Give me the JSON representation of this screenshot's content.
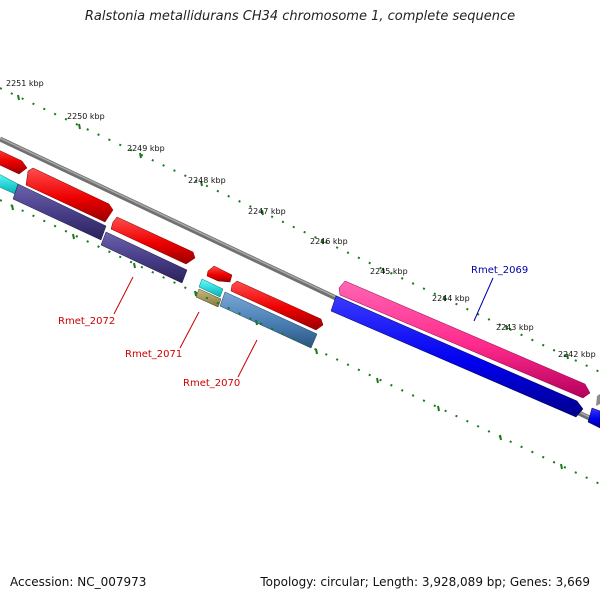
{
  "title": "Ralstonia metallidurans CH34 chromosome 1, complete sequence",
  "accession_text": "Accession: NC_007973",
  "summary_text": "Topology: circular; Length: 3,928,089 bp; Genes: 3,669",
  "ticks": [
    "2251 kbp",
    "2250 kbp",
    "2249 kbp",
    "2248 kbp",
    "2247 kbp",
    "2246 kbp",
    "2245 kbp",
    "2244 kbp",
    "2243 kbp",
    "2242 kbp"
  ],
  "gene_labels": [
    {
      "name": "Rmet_2072",
      "color": "#cc0000"
    },
    {
      "name": "Rmet_2071",
      "color": "#cc0000"
    },
    {
      "name": "Rmet_2070",
      "color": "#cc0000"
    },
    {
      "name": "Rmet_2069",
      "color": "#0000aa"
    }
  ],
  "colors": {
    "backbone": "#808080",
    "tick": "#1a7a1a",
    "cds_forward": "#ff0000",
    "cds_reverse_blue": "#0000ee",
    "pink": "#ff3399",
    "slate": "#4a3f8a",
    "steel": "#4a7fb5",
    "cyan": "#00e5e5",
    "khaki": "#b0a060"
  }
}
